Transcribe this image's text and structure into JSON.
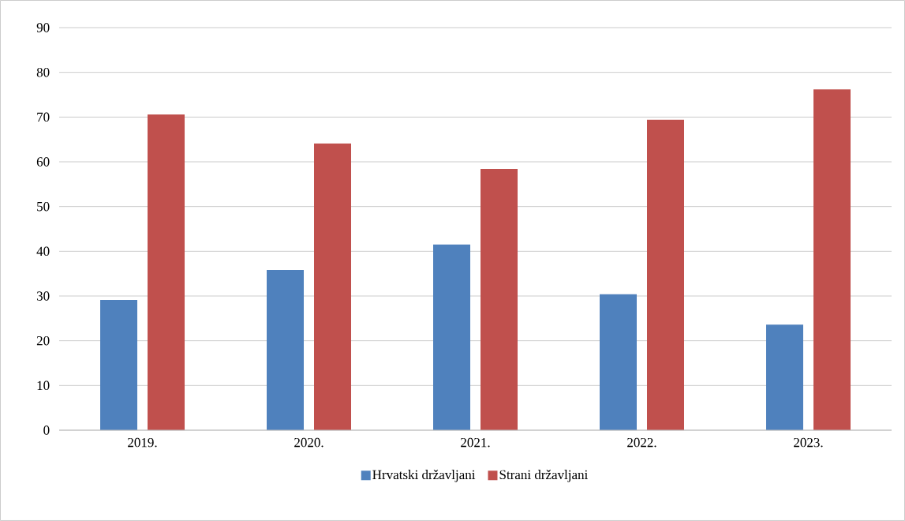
{
  "chart_data": {
    "type": "bar",
    "categories": [
      "2019.",
      "2020.",
      "2021.",
      "2022.",
      "2023."
    ],
    "series": [
      {
        "name": "Hrvatski državljani",
        "color": "#4f81bd",
        "values": [
          29.1,
          35.8,
          41.5,
          30.4,
          23.6
        ]
      },
      {
        "name": "Strani državljani",
        "color": "#c0504d",
        "values": [
          70.6,
          64.1,
          58.4,
          69.4,
          76.2
        ]
      }
    ],
    "ylim": [
      0,
      90
    ],
    "yticks": [
      0,
      10,
      20,
      30,
      40,
      50,
      60,
      70,
      80,
      90
    ],
    "grid": "y",
    "legend": "bottom"
  }
}
